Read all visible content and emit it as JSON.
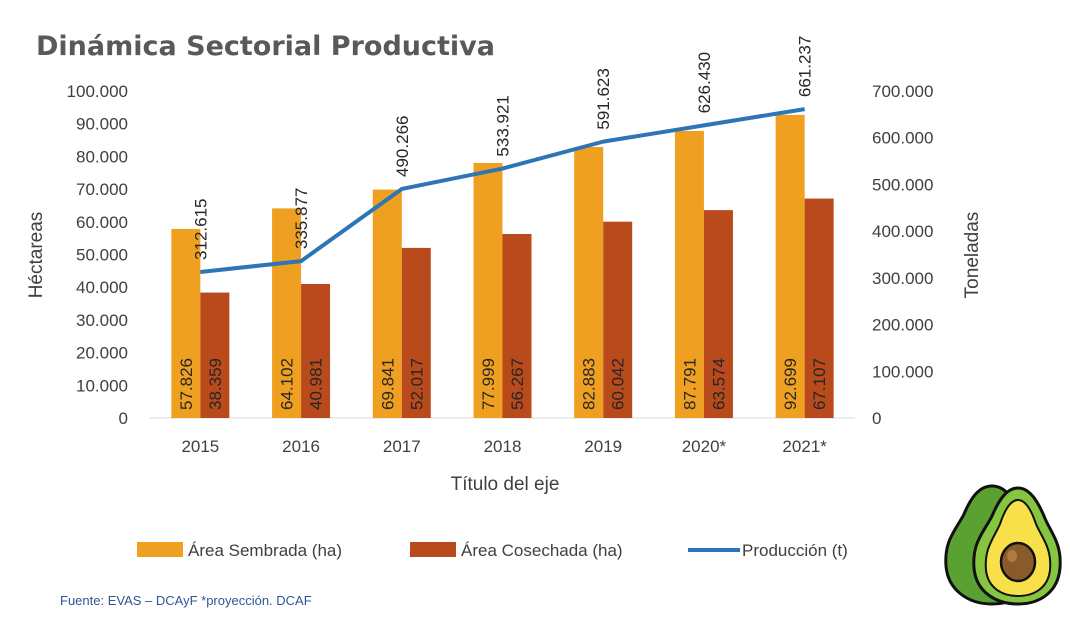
{
  "chart_data": {
    "type": "bar",
    "title": "Dinámica Sectorial Productiva",
    "xlabel": "Título del eje",
    "ylabel": "Héctareas",
    "y2label": "Toneladas",
    "categories": [
      "2015",
      "2016",
      "2017",
      "2018",
      "2019",
      "2020*",
      "2021*"
    ],
    "ylim": [
      0,
      100000
    ],
    "y2lim": [
      0,
      700000
    ],
    "yticks": [
      "0",
      "10.000",
      "20.000",
      "30.000",
      "40.000",
      "50.000",
      "60.000",
      "70.000",
      "80.000",
      "90.000",
      "100.000"
    ],
    "yticks_values": [
      0,
      10000,
      20000,
      30000,
      40000,
      50000,
      60000,
      70000,
      80000,
      90000,
      100000
    ],
    "y2ticks": [
      "0",
      "100.000",
      "200.000",
      "300.000",
      "400.000",
      "500.000",
      "600.000",
      "700.000"
    ],
    "y2ticks_values": [
      0,
      100000,
      200000,
      300000,
      400000,
      500000,
      600000,
      700000
    ],
    "grid": false,
    "legend_position": "bottom",
    "series": [
      {
        "name": "Área Sembrada (ha)",
        "type": "bar",
        "axis": "left",
        "color": "#f0a020",
        "values": [
          57826,
          64102,
          69841,
          77999,
          82883,
          87791,
          92699
        ],
        "labels": [
          "57.826",
          "64.102",
          "69.841",
          "77.999",
          "82.883",
          "87.791",
          "92.699"
        ]
      },
      {
        "name": "Área Cosechada (ha)",
        "type": "bar",
        "axis": "left",
        "color": "#b84a1c",
        "values": [
          38359,
          40981,
          52017,
          56267,
          60042,
          63574,
          67107
        ],
        "labels": [
          "38.359",
          "40.981",
          "52.017",
          "56.267",
          "60.042",
          "63.574",
          "67.107"
        ]
      },
      {
        "name": "Producción  (t)",
        "type": "line",
        "axis": "right",
        "color": "#2e75b6",
        "values": [
          312615,
          335877,
          490266,
          533921,
          591623,
          626430,
          661237
        ],
        "labels": [
          "312.615",
          "335.877",
          "490.266",
          "533.921",
          "591.623",
          "626.430",
          "661.237"
        ]
      }
    ]
  },
  "footer": {
    "source": "Fuente: EVAS – DCAyF *proyección. DCAF"
  },
  "decoration": {
    "icon": "avocado-icon"
  }
}
